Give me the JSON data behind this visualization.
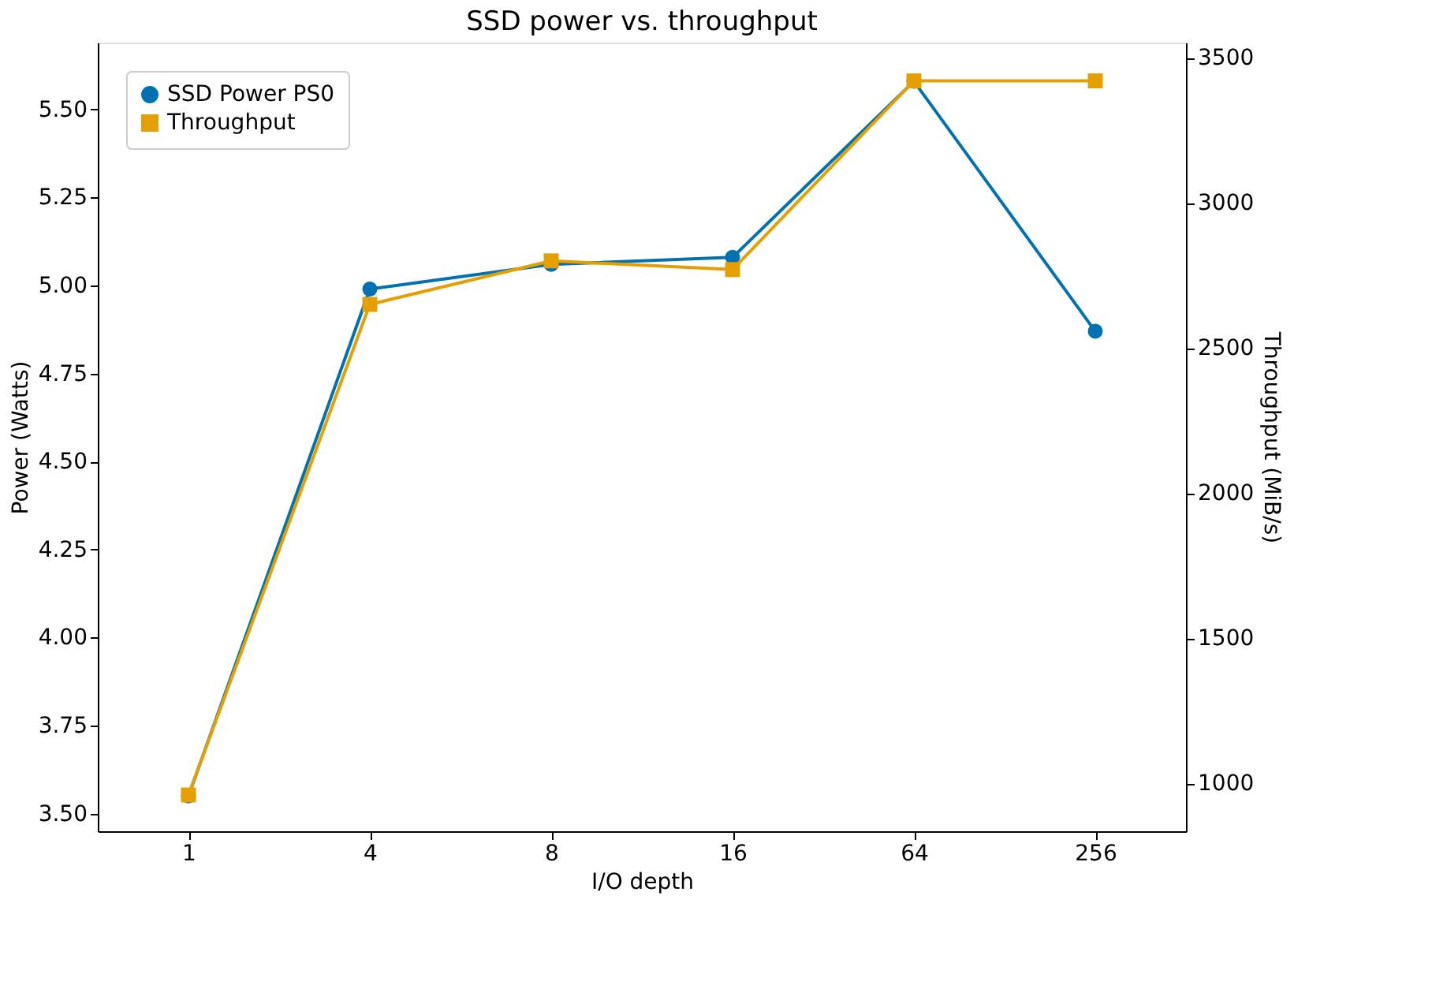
{
  "chart_data": {
    "type": "line",
    "title": "SSD power vs. throughput",
    "xlabel": "I/O depth",
    "ylabel": "Power (Watts)",
    "y2label": "Throughput (MiB/s)",
    "categories": [
      "1",
      "4",
      "8",
      "16",
      "64",
      "256"
    ],
    "series": [
      {
        "name": "SSD Power PS0",
        "color": "#0072b2",
        "marker": "circle",
        "values": [
          3.55,
          4.99,
          5.06,
          5.08,
          5.58,
          4.87
        ]
      },
      {
        "name": "Throughput",
        "color": "#e69f00",
        "marker": "square",
        "axis": "y2",
        "values": [
          960,
          2650,
          2800,
          2770,
          3420,
          3420
        ]
      }
    ],
    "ylim": [
      3.45,
      5.69
    ],
    "yticks": [
      {
        "value": 3.5,
        "label": "3.50"
      },
      {
        "value": 3.75,
        "label": "3.75"
      },
      {
        "value": 4.0,
        "label": "4.00"
      },
      {
        "value": 4.25,
        "label": "4.25"
      },
      {
        "value": 4.5,
        "label": "4.50"
      },
      {
        "value": 4.75,
        "label": "4.75"
      },
      {
        "value": 5.0,
        "label": "5.00"
      },
      {
        "value": 5.25,
        "label": "5.25"
      },
      {
        "value": 5.5,
        "label": "5.50"
      }
    ],
    "y2lim": [
      835,
      3552
    ],
    "y2ticks": [
      1000,
      1500,
      2000,
      2500,
      3000,
      3500
    ],
    "grid": false,
    "legend": "top left",
    "line_style": "solid"
  }
}
